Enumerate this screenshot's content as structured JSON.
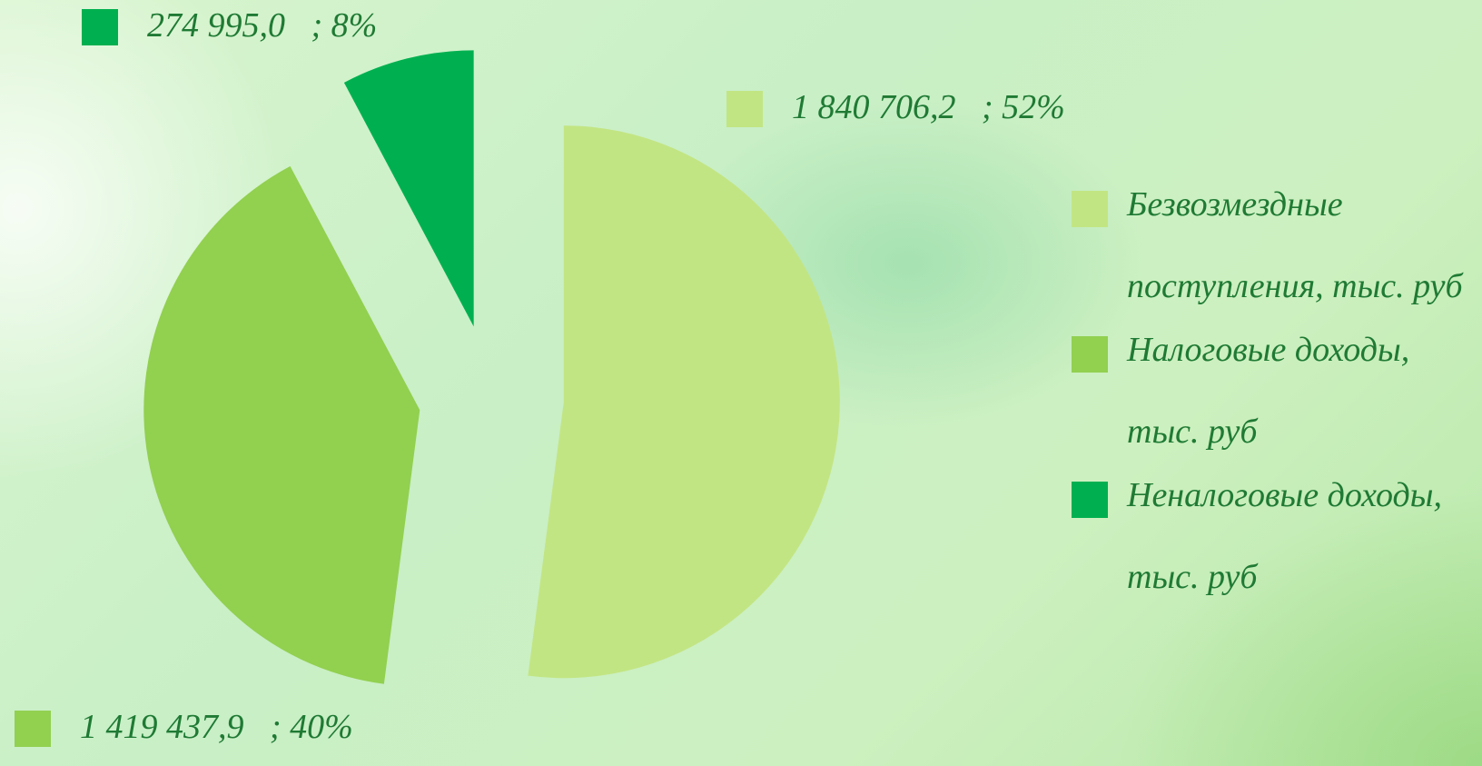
{
  "chart_data": {
    "type": "pie",
    "series": [
      {
        "name": "Безвозмездные поступления, тыс. руб",
        "color": "#c2e583",
        "values": [
          1840706.2
        ],
        "value_labels": [
          "1 840 706,2   ; 52%"
        ]
      },
      {
        "name": "Налоговые доходы, тыс. руб",
        "color": "#92d050",
        "values": [
          1419437.9
        ],
        "value_labels": [
          "1 419 437,9   ; 40%"
        ]
      },
      {
        "name": "Неналоговые доходы, тыс. руб",
        "color": "#00b050",
        "values": [
          274995.0
        ],
        "value_labels": [
          "274 995,0   ; 8%"
        ]
      }
    ],
    "exploded": true,
    "legend": "right"
  }
}
